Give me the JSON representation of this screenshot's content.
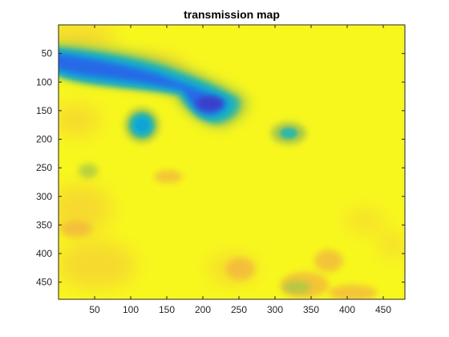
{
  "chart_data": {
    "type": "heatmap",
    "title": "transmission map",
    "xlabel": "",
    "ylabel": "",
    "xlim": [
      0,
      480
    ],
    "ylim": [
      0,
      480
    ],
    "y_reversed": true,
    "xticks": [
      50,
      100,
      150,
      200,
      250,
      300,
      350,
      400,
      450
    ],
    "yticks": [
      50,
      100,
      150,
      200,
      250,
      300,
      350,
      400,
      450
    ],
    "colormap": "parula",
    "colors": {
      "background": "#f7f71e",
      "orange": "#f6c23d",
      "green": "#a9c846",
      "teal": "#30b8a6",
      "cyan": "#10a5d8",
      "blue": "#2a62e9",
      "dark_blue": "#3b3ec8"
    },
    "regions": [
      {
        "name": "upper-left low-transmission band",
        "x": [
          0,
          230
        ],
        "y": [
          50,
          100
        ],
        "level": "blue"
      },
      {
        "name": "dark minimum",
        "x": 210,
        "y": 140,
        "level": "dark_blue"
      },
      {
        "name": "circular low spot",
        "x": 110,
        "y": 180,
        "level": "cyan"
      },
      {
        "name": "small low spot",
        "x": 325,
        "y": 192,
        "level": "teal"
      },
      {
        "name": "bottom-left textured patch",
        "x": 40,
        "y": 260,
        "level": "green"
      },
      {
        "name": "bottom textured patches",
        "x": [
          230,
          480
        ],
        "y": [
          330,
          480
        ],
        "level": "orange"
      }
    ]
  }
}
